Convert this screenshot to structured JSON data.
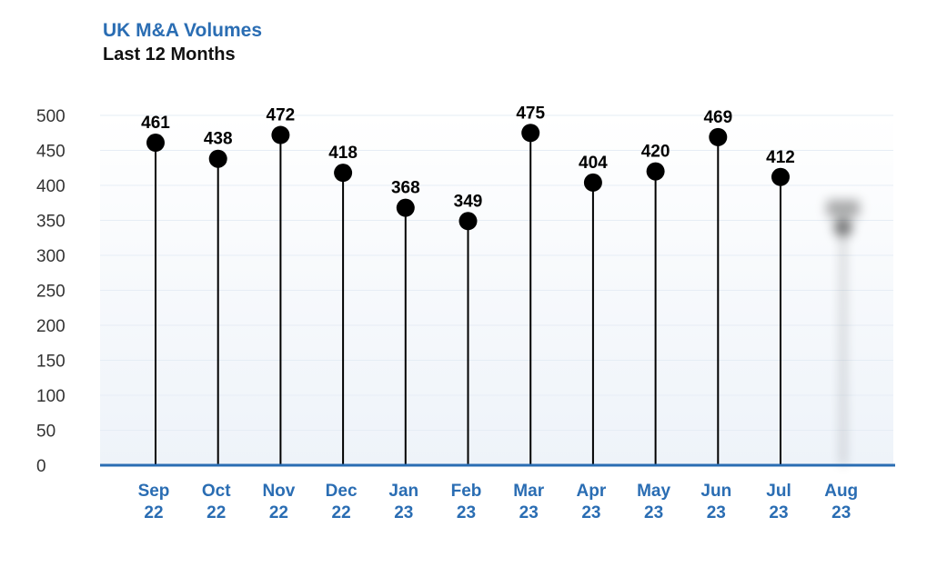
{
  "header": {
    "title": "UK M&A Volumes",
    "subtitle": "Last 12 Months"
  },
  "colors": {
    "accent": "#2a6db3",
    "stem": "#000000",
    "grid": "#e6edf5"
  },
  "chart_data": {
    "type": "lollipop",
    "title": "UK M&A Volumes",
    "subtitle": "Last 12 Months",
    "categories": [
      [
        "Sep",
        "22"
      ],
      [
        "Oct",
        "22"
      ],
      [
        "Nov",
        "22"
      ],
      [
        "Dec",
        "22"
      ],
      [
        "Jan",
        "23"
      ],
      [
        "Feb",
        "23"
      ],
      [
        "Mar",
        "23"
      ],
      [
        "Apr",
        "23"
      ],
      [
        "May",
        "23"
      ],
      [
        "Jun",
        "23"
      ],
      [
        "Jul",
        "23"
      ],
      [
        "Aug",
        "23"
      ]
    ],
    "values": [
      461,
      438,
      472,
      418,
      368,
      349,
      475,
      404,
      420,
      469,
      412,
      340
    ],
    "labels": [
      "461",
      "438",
      "472",
      "418",
      "368",
      "349",
      "475",
      "404",
      "420",
      "469",
      "412",
      ""
    ],
    "blurred_last": true,
    "ylim": [
      0,
      500
    ],
    "yticks": [
      0,
      50,
      100,
      150,
      200,
      250,
      300,
      350,
      400,
      450,
      500
    ],
    "grid": true,
    "xlabel": "",
    "ylabel": ""
  }
}
